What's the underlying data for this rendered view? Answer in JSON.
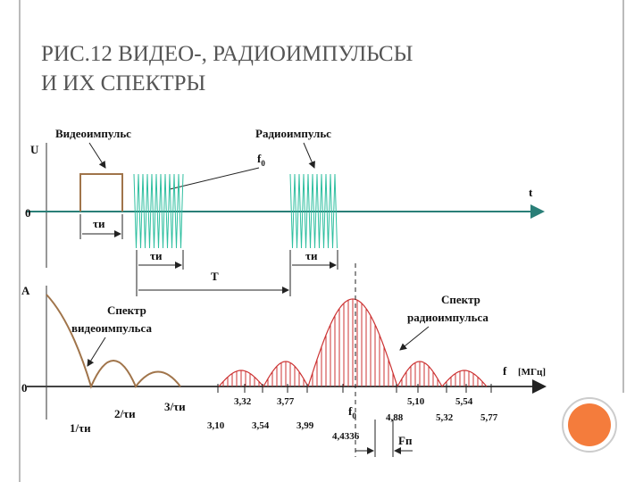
{
  "title": {
    "lines": [
      "РИС.12 ВИДЕО-, РАДИОИМПУЛЬСЫ",
      "И ИХ СПЕКТРЫ"
    ]
  },
  "time_diagram": {
    "axis_u": "U",
    "axis_t": "t",
    "zero": "0",
    "video_label": "Видеоимпульс",
    "radio_label": "Радиоимпульс",
    "carrier": {
      "base": "f",
      "sub": "0"
    },
    "tau_labels": [
      "τи",
      "τи",
      "τи"
    ],
    "period": "T"
  },
  "spectrum_diagram": {
    "axis_a": "A",
    "axis_f": "f",
    "unit": "[МГц]",
    "zero": "0",
    "video_spectrum_label": [
      "Спектр",
      "видеоимпульса"
    ],
    "radio_spectrum_label": [
      "Спектр",
      "радиоимпульса"
    ],
    "video_ticks": [
      "1/τи",
      "2/τи",
      "3/τи"
    ],
    "freq_labels": [
      "3,32",
      "3,77",
      "3,10",
      "3,54",
      "3,99",
      "4,4336",
      "4,88",
      "5,10",
      "5,32",
      "5,54",
      "5,77"
    ],
    "carrier": {
      "base": "f",
      "sub": "0"
    },
    "repetition": "Fп"
  }
}
